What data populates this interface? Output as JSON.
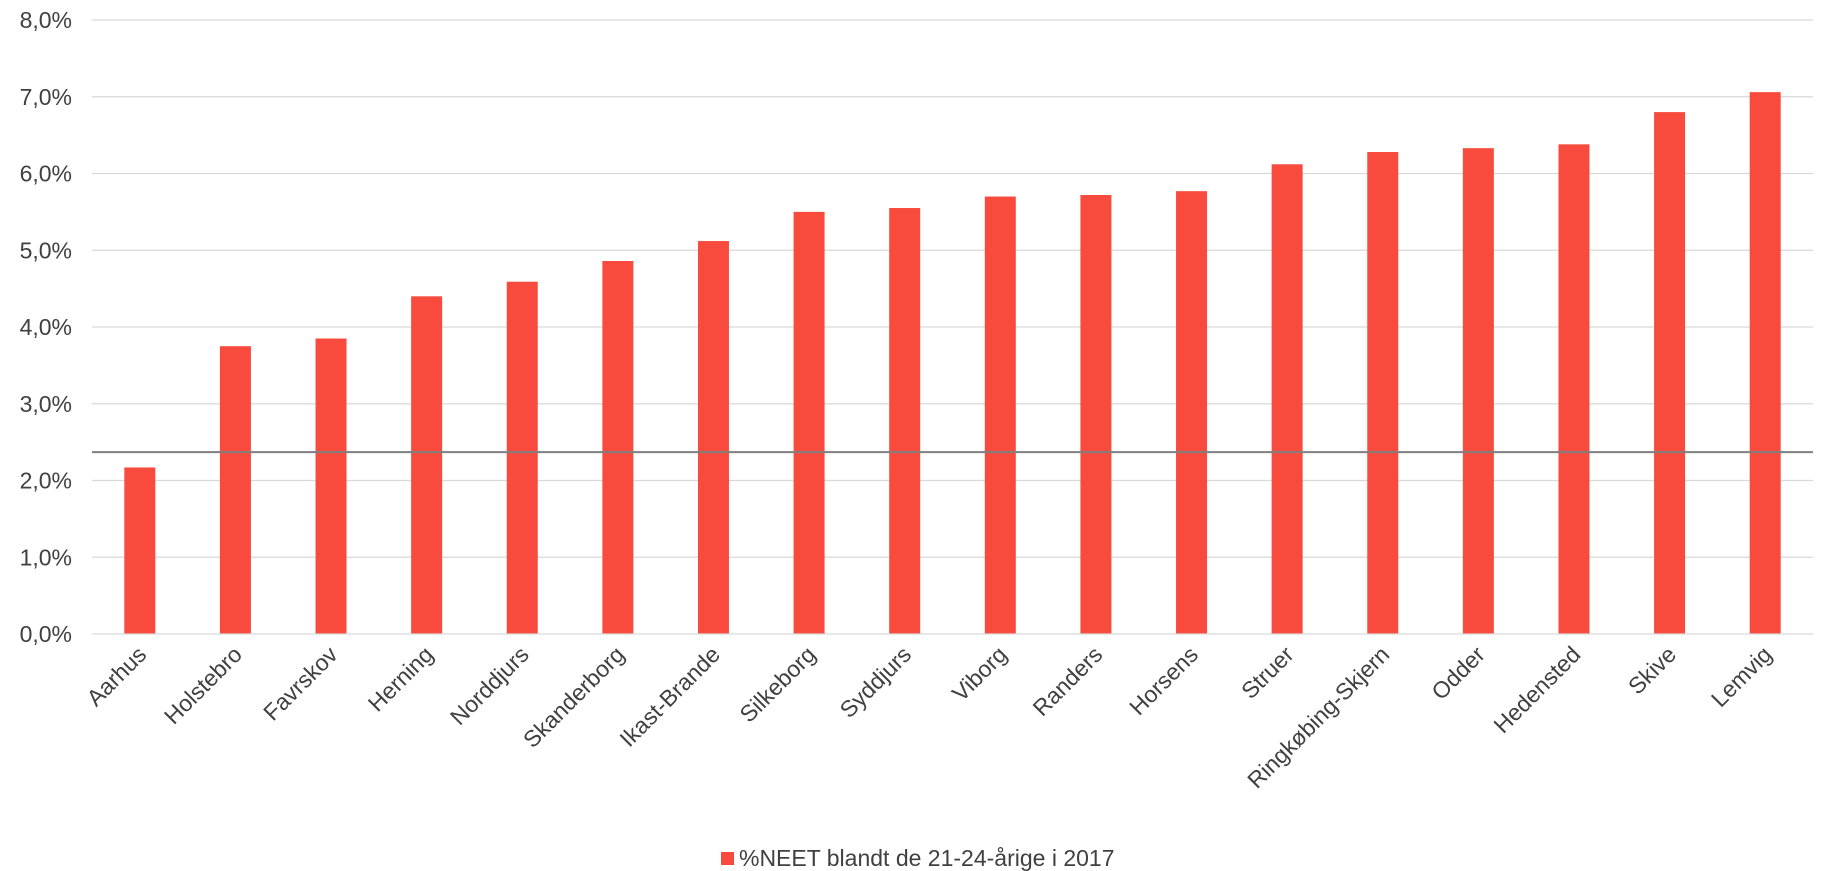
{
  "chart_data": {
    "type": "bar",
    "categories": [
      "Aarhus",
      "Holstebro",
      "Favrskov",
      "Herning",
      "Norddjurs",
      "Skanderborg",
      "Ikast-Brande",
      "Silkeborg",
      "Syddjurs",
      "Viborg",
      "Randers",
      "Horsens",
      "Struer",
      "Ringkøbing-Skjern",
      "Odder",
      "Hedensted",
      "Skive",
      "Lemvig"
    ],
    "series": [
      {
        "name": "%NEET blandt de 21-24-årige i 2017",
        "color": "#f84b3e",
        "values": [
          2.17,
          3.75,
          3.85,
          4.4,
          4.59,
          4.86,
          5.12,
          5.5,
          5.55,
          5.7,
          5.72,
          5.77,
          6.12,
          6.28,
          6.33,
          6.38,
          6.8,
          7.06
        ]
      }
    ],
    "reference_line": {
      "value": 2.37,
      "color": "#7f7f7f"
    },
    "ylim": [
      0,
      8
    ],
    "yticks": [
      0,
      1,
      2,
      3,
      4,
      5,
      6,
      7,
      8
    ],
    "ytick_labels": [
      "0,0%",
      "1,0%",
      "2,0%",
      "3,0%",
      "4,0%",
      "5,0%",
      "6,0%",
      "7,0%",
      "8,0%"
    ],
    "grid": true,
    "legend_position": "bottom",
    "title": "",
    "xlabel": "",
    "ylabel": ""
  }
}
